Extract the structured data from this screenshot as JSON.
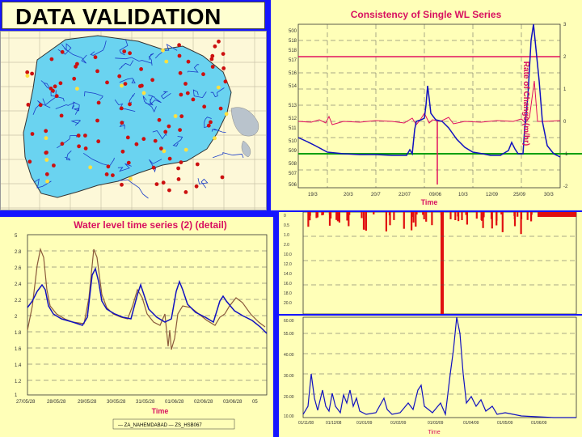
{
  "slide": {
    "title": "DATA VALIDATION",
    "colors": {
      "background": "#1515ff",
      "plot_bg": "#ffffb8",
      "map_bg": "#fdf8d8",
      "basin": "#6ad3f0",
      "river": "#1a3cc8",
      "station": "#cc1010",
      "wl_series": "#1010c0",
      "roc_series": "#e01060",
      "threshold": "#e01060",
      "baseline": "#10a010",
      "comparison": "#8b5a3c"
    }
  },
  "top_chart": {
    "title": "Consistency of Single WL Series",
    "xlabel": "Time",
    "ylabel_right": "Rate of Change (m/hr)"
  },
  "bottom_left_chart": {
    "title": "Water level time series (2) (detail)",
    "xlabel": "Time",
    "legend": "— ZA_NAHEMDABAD — ZS_HSB067"
  },
  "bottom_right_chart": {
    "xlabel": "Time"
  }
}
